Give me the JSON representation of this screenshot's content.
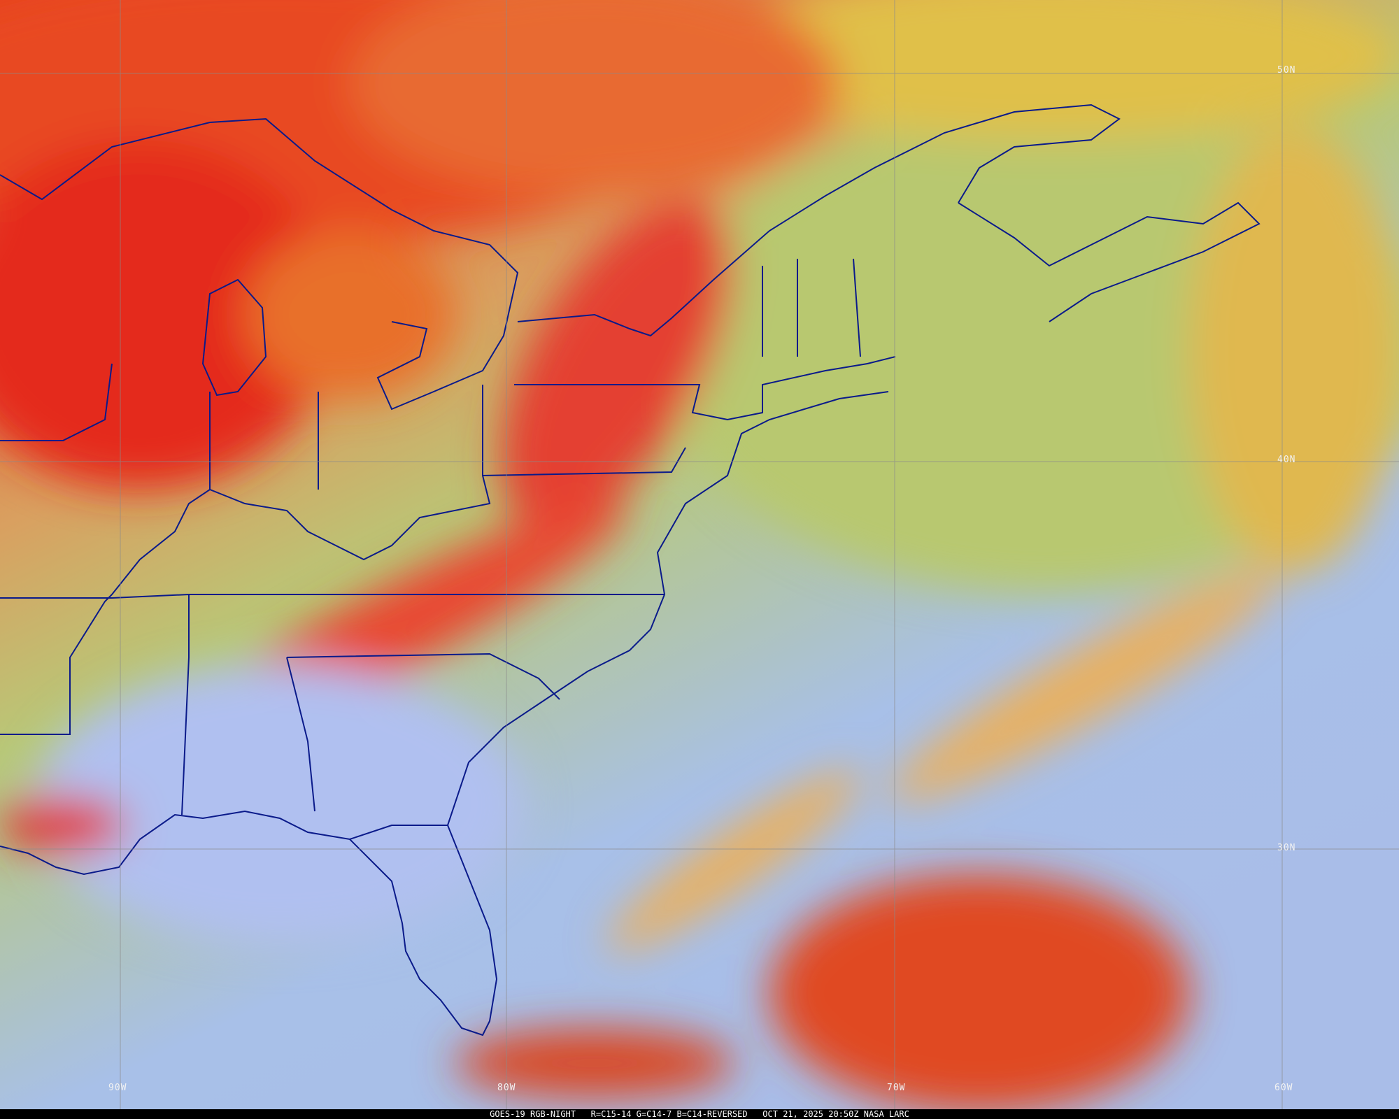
{
  "image": {
    "satellite": "GOES-19",
    "product": "RGB-NIGHT",
    "recipe": "R=C15-14 G=C14-7 B=C14-REVERSED",
    "datetime": "OCT 21, 2025 20:50Z",
    "credit": "NASA LARC"
  },
  "caption": "GOES-19 RGB-NIGHT   R=C15-14 G=C14-7 B=C14-REVERSED   OCT 21, 2025 20:50Z NASA LARC",
  "grid": {
    "latitudes": [
      "50N",
      "40N",
      "30N"
    ],
    "longitudes": [
      "90W",
      "80W",
      "70W",
      "60W"
    ]
  },
  "colors": {
    "boundaries": "#0a1a8a",
    "gridlines": "#8a8a8a",
    "high_cloud": "#e8301c",
    "mid_cloud": "#f0a030",
    "clear_land": "#b8c878",
    "clear_ocean": "#a8c0e8"
  }
}
